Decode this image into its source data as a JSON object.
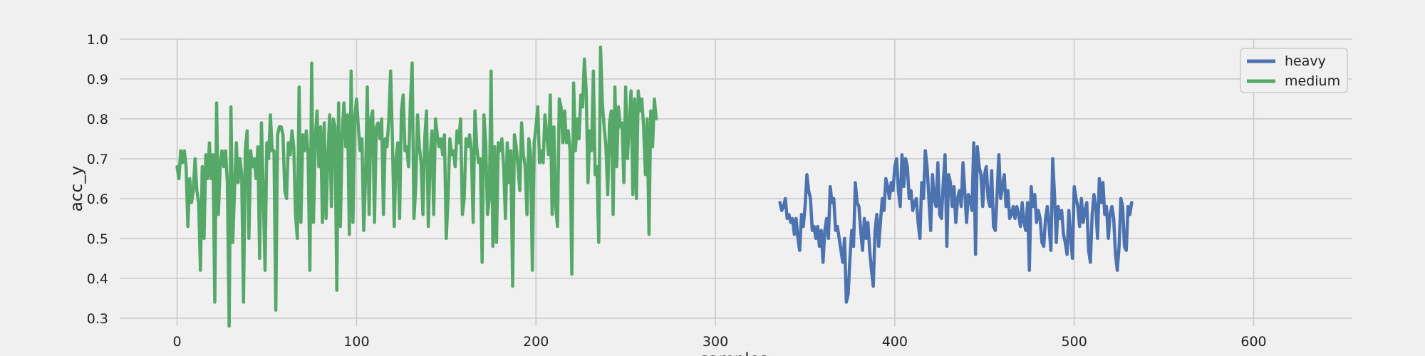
{
  "chart_data": {
    "type": "line",
    "xlabel": "samples",
    "ylabel": "acc_y",
    "xlim": [
      -32,
      655
    ],
    "ylim": [
      0.28,
      1.0
    ],
    "xticks": [
      0,
      100,
      200,
      300,
      400,
      500,
      600
    ],
    "yticks": [
      0.3,
      0.4,
      0.5,
      0.6,
      0.7,
      0.8,
      0.9,
      1.0
    ],
    "xtick_labels": [
      "0",
      "100",
      "200",
      "300",
      "400",
      "500",
      "600"
    ],
    "ytick_labels": [
      "0.3",
      "0.4",
      "0.5",
      "0.6",
      "0.7",
      "0.8",
      "0.9",
      "1.0"
    ],
    "grid": true,
    "legend_position": "top-right",
    "series": [
      {
        "name": "heavy",
        "color": "#4c72b0",
        "x_start": 336,
        "values": [
          0.59,
          0.57,
          0.58,
          0.6,
          0.55,
          0.56,
          0.54,
          0.55,
          0.51,
          0.55,
          0.5,
          0.47,
          0.56,
          0.53,
          0.58,
          0.66,
          0.62,
          0.6,
          0.52,
          0.53,
          0.5,
          0.53,
          0.48,
          0.52,
          0.44,
          0.52,
          0.55,
          0.5,
          0.63,
          0.59,
          0.6,
          0.52,
          0.53,
          0.5,
          0.47,
          0.44,
          0.5,
          0.34,
          0.36,
          0.45,
          0.52,
          0.48,
          0.64,
          0.59,
          0.58,
          0.52,
          0.47,
          0.55,
          0.5,
          0.54,
          0.47,
          0.42,
          0.38,
          0.52,
          0.56,
          0.48,
          0.54,
          0.6,
          0.57,
          0.65,
          0.63,
          0.6,
          0.64,
          0.62,
          0.68,
          0.7,
          0.62,
          0.58,
          0.71,
          0.63,
          0.7,
          0.68,
          0.6,
          0.62,
          0.57,
          0.59,
          0.6,
          0.54,
          0.5,
          0.64,
          0.6,
          0.72,
          0.68,
          0.6,
          0.52,
          0.66,
          0.6,
          0.58,
          0.69,
          0.56,
          0.55,
          0.64,
          0.71,
          0.48,
          0.66,
          0.64,
          0.58,
          0.63,
          0.54,
          0.6,
          0.62,
          0.58,
          0.69,
          0.62,
          0.54,
          0.61,
          0.6,
          0.57,
          0.74,
          0.46,
          0.73,
          0.68,
          0.66,
          0.58,
          0.66,
          0.68,
          0.6,
          0.58,
          0.67,
          0.53,
          0.52,
          0.61,
          0.71,
          0.6,
          0.63,
          0.66,
          0.58,
          0.62,
          0.55,
          0.56,
          0.58,
          0.55,
          0.58,
          0.56,
          0.53,
          0.59,
          0.54,
          0.52,
          0.59,
          0.42,
          0.63,
          0.58,
          0.61,
          0.54,
          0.57,
          0.55,
          0.49,
          0.48,
          0.55,
          0.58,
          0.53,
          0.47,
          0.7,
          0.61,
          0.49,
          0.58,
          0.55,
          0.57,
          0.51,
          0.49,
          0.46,
          0.57,
          0.5,
          0.45,
          0.63,
          0.6,
          0.58,
          0.53,
          0.6,
          0.54,
          0.57,
          0.59,
          0.47,
          0.44,
          0.56,
          0.61,
          0.58,
          0.5,
          0.65,
          0.59,
          0.64,
          0.56,
          0.58,
          0.5,
          0.56,
          0.58,
          0.55,
          0.46,
          0.42,
          0.48,
          0.6,
          0.58,
          0.48,
          0.47,
          0.58,
          0.56,
          0.59
        ]
      },
      {
        "name": "medium",
        "color": "#55a868",
        "x_start": 0,
        "values": [
          0.68,
          0.65,
          0.72,
          0.69,
          0.72,
          0.68,
          0.53,
          0.65,
          0.59,
          0.62,
          0.7,
          0.62,
          0.59,
          0.42,
          0.68,
          0.5,
          0.71,
          0.65,
          0.74,
          0.65,
          0.71,
          0.34,
          0.84,
          0.56,
          0.68,
          0.72,
          0.68,
          0.72,
          0.64,
          0.28,
          0.83,
          0.49,
          0.62,
          0.74,
          0.64,
          0.7,
          0.66,
          0.34,
          0.72,
          0.77,
          0.5,
          0.72,
          0.68,
          0.7,
          0.65,
          0.73,
          0.45,
          0.79,
          0.62,
          0.42,
          0.74,
          0.7,
          0.81,
          0.72,
          0.72,
          0.32,
          0.76,
          0.78,
          0.78,
          0.76,
          0.62,
          0.6,
          0.74,
          0.71,
          0.77,
          0.73,
          0.56,
          0.5,
          0.88,
          0.54,
          0.76,
          0.72,
          0.77,
          0.71,
          0.42,
          0.94,
          0.54,
          0.75,
          0.82,
          0.68,
          0.78,
          0.54,
          0.79,
          0.55,
          0.7,
          0.81,
          0.58,
          0.8,
          0.78,
          0.37,
          0.84,
          0.53,
          0.76,
          0.84,
          0.73,
          0.81,
          0.51,
          0.92,
          0.54,
          0.8,
          0.85,
          0.78,
          0.72,
          0.75,
          0.52,
          0.65,
          0.88,
          0.56,
          0.8,
          0.82,
          0.54,
          0.78,
          0.79,
          0.75,
          0.8,
          0.56,
          0.75,
          0.73,
          0.8,
          0.92,
          0.75,
          0.53,
          0.7,
          0.74,
          0.55,
          0.82,
          0.86,
          0.72,
          0.73,
          0.68,
          0.84,
          0.94,
          0.55,
          0.63,
          0.81,
          0.73,
          0.69,
          0.56,
          0.75,
          0.82,
          0.53,
          0.7,
          0.77,
          0.56,
          0.8,
          0.76,
          0.73,
          0.75,
          0.71,
          0.76,
          0.5,
          0.6,
          0.75,
          0.71,
          0.72,
          0.68,
          0.77,
          0.74,
          0.8,
          0.56,
          0.6,
          0.75,
          0.73,
          0.76,
          0.72,
          0.54,
          0.82,
          0.73,
          0.69,
          0.7,
          0.44,
          0.81,
          0.74,
          0.56,
          0.6,
          0.92,
          0.48,
          0.73,
          0.49,
          0.74,
          0.72,
          0.75,
          0.68,
          0.55,
          0.74,
          0.64,
          0.72,
          0.38,
          0.76,
          0.73,
          0.68,
          0.62,
          0.79,
          0.71,
          0.68,
          0.56,
          0.75,
          0.71,
          0.42,
          0.74,
          0.78,
          0.83,
          0.69,
          0.72,
          0.69,
          0.81,
          0.76,
          0.71,
          0.86,
          0.56,
          0.78,
          0.58,
          0.53,
          0.85,
          0.83,
          0.74,
          0.82,
          0.74,
          0.77,
          0.72,
          0.41,
          0.89,
          0.72,
          0.8,
          0.75,
          0.86,
          0.83,
          0.95,
          0.87,
          0.64,
          0.77,
          0.72,
          0.92,
          0.66,
          0.68,
          0.49,
          0.98,
          0.84,
          0.78,
          0.73,
          0.61,
          0.79,
          0.82,
          0.56,
          0.88,
          0.68,
          0.83,
          0.78,
          0.79,
          0.64,
          0.88,
          0.7,
          0.79,
          0.87,
          0.61,
          0.85,
          0.6,
          0.87,
          0.82,
          0.85,
          0.78,
          0.66,
          0.8,
          0.51,
          0.82,
          0.73,
          0.85,
          0.8
        ]
      }
    ]
  }
}
